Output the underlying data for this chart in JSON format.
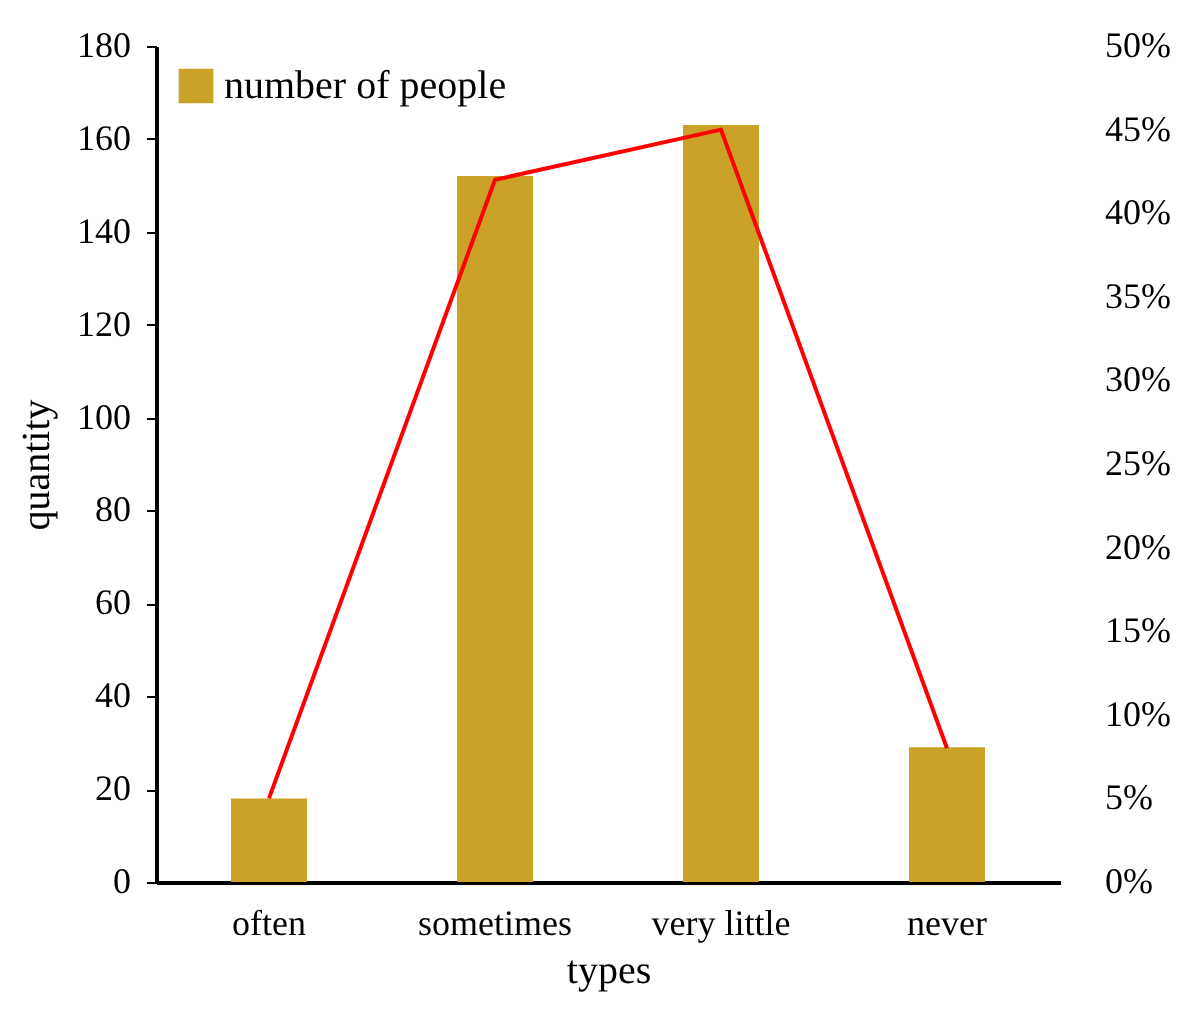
{
  "chart_data": {
    "type": "bar",
    "xlabel": "types",
    "ylabel": "quantity",
    "categories": [
      "often",
      "sometimes",
      "very little",
      "never"
    ],
    "series": [
      {
        "name": "number of people",
        "color": "#c9a227",
        "values": [
          18,
          152,
          163,
          29
        ]
      },
      {
        "type": "line",
        "axis": "y2",
        "color": "#ff0000",
        "values": [
          5,
          42,
          45,
          8
        ]
      }
    ],
    "ylim": [
      0,
      180
    ],
    "yticks": [
      0,
      20,
      40,
      60,
      80,
      100,
      120,
      140,
      160,
      180
    ],
    "y2lim": [
      0,
      50
    ],
    "y2ticks": [
      {
        "value": 0,
        "label": "0%"
      },
      {
        "value": 5,
        "label": "5%"
      },
      {
        "value": 10,
        "label": "10%"
      },
      {
        "value": 15,
        "label": "15%"
      },
      {
        "value": 20,
        "label": "20%"
      },
      {
        "value": 25,
        "label": "25%"
      },
      {
        "value": 30,
        "label": "30%"
      },
      {
        "value": 35,
        "label": "35%"
      },
      {
        "value": 40,
        "label": "40%"
      },
      {
        "value": 45,
        "label": "45%"
      },
      {
        "value": 50,
        "label": "50%"
      }
    ],
    "grid": false,
    "legend": "top left"
  }
}
